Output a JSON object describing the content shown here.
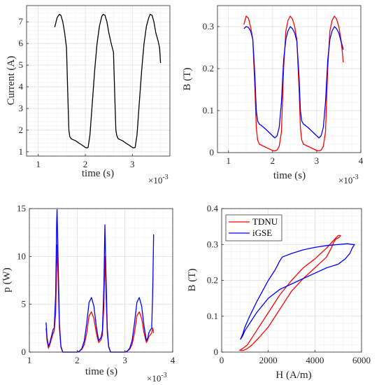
{
  "chart_data": [
    {
      "type": "line",
      "xlabel": "time (s)",
      "ylabel": "Current (A)",
      "x_multiplier": "×10",
      "x_multiplier_exp": "-3",
      "xlim": [
        0.75,
        3.8
      ],
      "ylim": [
        0.8,
        7.75
      ],
      "xticks": [
        1,
        2,
        3
      ],
      "yticks": [
        1,
        2,
        3,
        4,
        5,
        6,
        7
      ],
      "grid": true,
      "series": [
        {
          "color": "#000000",
          "x": [
            1.35,
            1.4,
            1.45,
            1.48,
            1.52,
            1.56,
            1.6,
            1.63,
            1.65,
            1.67,
            1.7,
            1.75,
            1.8,
            1.85,
            1.9,
            1.95,
            2.0,
            2.03,
            2.06,
            2.1,
            2.15,
            2.2,
            2.25,
            2.3,
            2.35,
            2.38,
            2.42,
            2.46,
            2.5,
            2.55,
            2.6,
            2.63,
            2.65,
            2.67,
            2.7,
            2.75,
            2.8,
            2.85,
            2.9,
            2.95,
            3.0,
            3.03,
            3.06,
            3.1,
            3.15,
            3.2,
            3.25,
            3.3,
            3.35,
            3.38,
            3.42,
            3.46,
            3.5,
            3.55,
            3.58,
            3.6
          ],
          "y": [
            6.75,
            7.2,
            7.35,
            7.3,
            7.0,
            6.5,
            5.8,
            3.5,
            2.0,
            1.7,
            1.6,
            1.55,
            1.5,
            1.42,
            1.35,
            1.28,
            1.2,
            1.18,
            1.2,
            1.8,
            3.3,
            4.8,
            6.0,
            6.8,
            7.25,
            7.35,
            7.3,
            7.0,
            6.5,
            6.0,
            5.6,
            3.3,
            2.0,
            1.75,
            1.6,
            1.55,
            1.5,
            1.42,
            1.35,
            1.28,
            1.2,
            1.18,
            1.2,
            1.8,
            3.3,
            4.8,
            6.0,
            6.8,
            7.2,
            7.35,
            7.3,
            7.0,
            6.5,
            6.1,
            5.8,
            5.1
          ]
        }
      ]
    },
    {
      "type": "line",
      "xlabel": "time (s)",
      "ylabel": "B (T)",
      "x_multiplier": "×10",
      "x_multiplier_exp": "-3",
      "xlim": [
        0.75,
        4.0
      ],
      "ylim": [
        0,
        0.35
      ],
      "xticks": [
        1,
        2,
        3,
        4
      ],
      "yticks": [
        0,
        0.1,
        0.2,
        0.3
      ],
      "grid": true,
      "series": [
        {
          "color": "#ff0000",
          "x": [
            1.35,
            1.4,
            1.45,
            1.5,
            1.55,
            1.6,
            1.63,
            1.66,
            1.7,
            1.8,
            1.9,
            2.0,
            2.05,
            2.1,
            2.15,
            2.2,
            2.25,
            2.3,
            2.35,
            2.4,
            2.45,
            2.5,
            2.55,
            2.6,
            2.63,
            2.66,
            2.7,
            2.8,
            2.9,
            3.0,
            3.05,
            3.1,
            3.15,
            3.2,
            3.25,
            3.3,
            3.35,
            3.4,
            3.45,
            3.5,
            3.55,
            3.58,
            3.6
          ],
          "y": [
            0.305,
            0.325,
            0.32,
            0.3,
            0.27,
            0.15,
            0.06,
            0.03,
            0.02,
            0.015,
            0.01,
            0.005,
            0.004,
            0.006,
            0.015,
            0.05,
            0.2,
            0.29,
            0.315,
            0.325,
            0.318,
            0.3,
            0.27,
            0.15,
            0.06,
            0.03,
            0.02,
            0.015,
            0.01,
            0.005,
            0.004,
            0.006,
            0.015,
            0.05,
            0.2,
            0.29,
            0.315,
            0.325,
            0.318,
            0.3,
            0.27,
            0.24,
            0.215
          ]
        },
        {
          "color": "#0000ff",
          "x": [
            1.35,
            1.4,
            1.45,
            1.5,
            1.55,
            1.6,
            1.63,
            1.66,
            1.7,
            1.8,
            1.9,
            2.0,
            2.05,
            2.1,
            2.15,
            2.2,
            2.25,
            2.3,
            2.35,
            2.4,
            2.45,
            2.5,
            2.55,
            2.6,
            2.63,
            2.66,
            2.7,
            2.8,
            2.9,
            3.0,
            3.05,
            3.1,
            3.15,
            3.2,
            3.25,
            3.3,
            3.35,
            3.4,
            3.45,
            3.5,
            3.55,
            3.58,
            3.6
          ],
          "y": [
            0.295,
            0.3,
            0.298,
            0.29,
            0.27,
            0.18,
            0.1,
            0.075,
            0.068,
            0.06,
            0.05,
            0.04,
            0.035,
            0.04,
            0.06,
            0.12,
            0.22,
            0.27,
            0.29,
            0.3,
            0.295,
            0.285,
            0.265,
            0.18,
            0.1,
            0.075,
            0.068,
            0.06,
            0.05,
            0.04,
            0.035,
            0.04,
            0.06,
            0.12,
            0.22,
            0.27,
            0.29,
            0.3,
            0.295,
            0.285,
            0.265,
            0.255,
            0.245
          ]
        }
      ]
    },
    {
      "type": "line",
      "xlabel": "time (s)",
      "ylabel": "p (W)",
      "x_multiplier": "×10",
      "x_multiplier_exp": "-3",
      "xlim": [
        1,
        4
      ],
      "ylim": [
        0,
        15
      ],
      "xticks": [
        1,
        2,
        3,
        4
      ],
      "yticks": [
        0,
        5,
        10,
        15
      ],
      "grid": true,
      "series": [
        {
          "color": "#ff0000",
          "x": [
            1.35,
            1.37,
            1.4,
            1.43,
            1.47,
            1.5,
            1.52,
            1.55,
            1.57,
            1.58,
            1.6,
            1.63,
            1.66,
            1.7,
            1.8,
            1.9,
            2.0,
            2.05,
            2.1,
            2.15,
            2.2,
            2.25,
            2.3,
            2.35,
            2.4,
            2.45,
            2.5,
            2.53,
            2.56,
            2.58,
            2.6,
            2.63,
            2.66,
            2.7,
            2.8,
            2.9,
            3.0,
            3.05,
            3.1,
            3.15,
            3.2,
            3.25,
            3.3,
            3.35,
            3.4,
            3.45,
            3.48,
            3.5,
            3.53,
            3.56,
            3.58,
            3.6
          ],
          "y": [
            2.5,
            1.2,
            0.4,
            0.8,
            1.5,
            2.0,
            2.2,
            4.0,
            9.0,
            11.2,
            8.0,
            2.5,
            0.5,
            0,
            0,
            0,
            0,
            0.1,
            0.3,
            0.8,
            2.0,
            3.8,
            4.2,
            3.5,
            2.0,
            1.0,
            1.3,
            1.8,
            5.0,
            10.0,
            7.0,
            2.0,
            0.5,
            0,
            0,
            0,
            0,
            0.1,
            0.3,
            0.8,
            2.0,
            3.8,
            4.2,
            3.5,
            2.0,
            1.0,
            1.3,
            1.6,
            1.8,
            2.0,
            2.5,
            2.0
          ]
        },
        {
          "color": "#0000ff",
          "x": [
            1.35,
            1.37,
            1.4,
            1.43,
            1.47,
            1.5,
            1.52,
            1.55,
            1.57,
            1.58,
            1.6,
            1.63,
            1.66,
            1.7,
            1.8,
            1.9,
            2.0,
            2.05,
            2.1,
            2.15,
            2.2,
            2.25,
            2.3,
            2.35,
            2.4,
            2.45,
            2.5,
            2.53,
            2.56,
            2.58,
            2.6,
            2.63,
            2.66,
            2.7,
            2.8,
            2.9,
            3.0,
            3.05,
            3.1,
            3.15,
            3.2,
            3.25,
            3.3,
            3.35,
            3.4,
            3.45,
            3.48,
            3.5,
            3.53,
            3.56,
            3.58,
            3.6
          ],
          "y": [
            3.1,
            1.5,
            0.6,
            1.0,
            1.8,
            2.4,
            2.5,
            6.0,
            13.5,
            14.9,
            10.0,
            3.0,
            0.6,
            0,
            0,
            0,
            0,
            0.1,
            0.4,
            1.2,
            3.0,
            5.2,
            5.7,
            4.8,
            2.7,
            1.2,
            1.5,
            2.3,
            7.0,
            13.3,
            9.0,
            2.5,
            0.6,
            0,
            0,
            0,
            0,
            0.1,
            0.4,
            1.2,
            3.0,
            5.2,
            5.7,
            4.8,
            2.7,
            1.2,
            1.5,
            2.0,
            2.3,
            2.5,
            6.0,
            12.3
          ]
        }
      ]
    },
    {
      "type": "line",
      "xlabel": "H (A/m)",
      "ylabel": "B (T)",
      "xlim": [
        0,
        6000
      ],
      "ylim": [
        0,
        0.4
      ],
      "xticks": [
        0,
        2000,
        4000,
        6000
      ],
      "yticks": [
        0,
        0.1,
        0.2,
        0.3,
        0.4
      ],
      "grid": true,
      "legend": {
        "position": "top-left",
        "entries": [
          "TDNU",
          "iGSE"
        ]
      },
      "series": [
        {
          "name": "TDNU",
          "color": "#ff0000",
          "x": [
            750,
            900,
            1100,
            1500,
            2000,
            2500,
            3000,
            3500,
            4000,
            4500,
            4900,
            5000,
            5100,
            5050,
            4900,
            4800,
            4700,
            4500,
            4000,
            3500,
            3000,
            2500,
            2000,
            1600,
            1300,
            1100,
            950,
            850,
            800,
            750
          ],
          "y": [
            0.004,
            0.01,
            0.02,
            0.06,
            0.11,
            0.16,
            0.2,
            0.235,
            0.26,
            0.29,
            0.318,
            0.325,
            0.325,
            0.32,
            0.315,
            0.305,
            0.29,
            0.265,
            0.235,
            0.205,
            0.17,
            0.12,
            0.07,
            0.04,
            0.02,
            0.01,
            0.005,
            0.004,
            0.006,
            0.004
          ]
        },
        {
          "name": "iGSE",
          "color": "#0000ff",
          "x": [
            800,
            900,
            1000,
            1200,
            1500,
            2000,
            2300,
            2500,
            2600,
            3000,
            3500,
            4000,
            4500,
            5000,
            5400,
            5600,
            5700,
            5600,
            5500,
            5300,
            5000,
            4500,
            4000,
            3500,
            3000,
            2500,
            2000,
            1500,
            1200,
            1000,
            900,
            800
          ],
          "y": [
            0.035,
            0.05,
            0.07,
            0.1,
            0.14,
            0.2,
            0.23,
            0.255,
            0.265,
            0.275,
            0.285,
            0.292,
            0.297,
            0.3,
            0.302,
            0.3,
            0.3,
            0.29,
            0.275,
            0.26,
            0.245,
            0.235,
            0.22,
            0.205,
            0.19,
            0.175,
            0.15,
            0.11,
            0.08,
            0.06,
            0.045,
            0.035
          ]
        }
      ]
    }
  ]
}
